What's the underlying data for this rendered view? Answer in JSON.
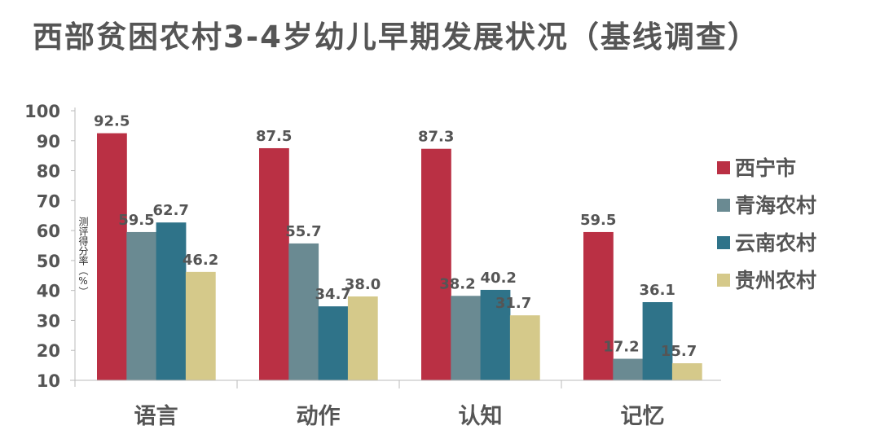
{
  "chart_data": {
    "type": "bar",
    "title": "西部贫困农村3-4岁幼儿早期发展状况（基线调查）",
    "xlabel": "",
    "ylabel": "测评得分率（%）",
    "ylim": [
      10,
      100
    ],
    "yticks": [
      10,
      20,
      30,
      40,
      50,
      60,
      70,
      80,
      90,
      100
    ],
    "categories": [
      "语言",
      "动作",
      "认知",
      "记忆"
    ],
    "series": [
      {
        "name": "西宁市",
        "color": "#BA3044",
        "values": [
          92.5,
          87.5,
          87.3,
          59.5
        ],
        "labels": [
          "92.5",
          "87.5",
          "87.3",
          "59.5"
        ]
      },
      {
        "name": "青海农村",
        "color": "#6A8A92",
        "values": [
          59.5,
          55.7,
          38.2,
          17.2
        ],
        "labels": [
          "59.5",
          "55.7",
          "38.2",
          "17.2"
        ]
      },
      {
        "name": "云南农村",
        "color": "#2F7389",
        "values": [
          62.7,
          34.7,
          40.2,
          36.1
        ],
        "labels": [
          "62.7",
          "34.7",
          "40.2",
          "36.1"
        ]
      },
      {
        "name": "贵州农村",
        "color": "#D5C98A",
        "values": [
          46.2,
          38.0,
          31.7,
          15.7
        ],
        "labels": [
          "46.2",
          "38.0",
          "31.7",
          "15.7"
        ]
      }
    ],
    "grid": false,
    "legend": "right"
  }
}
